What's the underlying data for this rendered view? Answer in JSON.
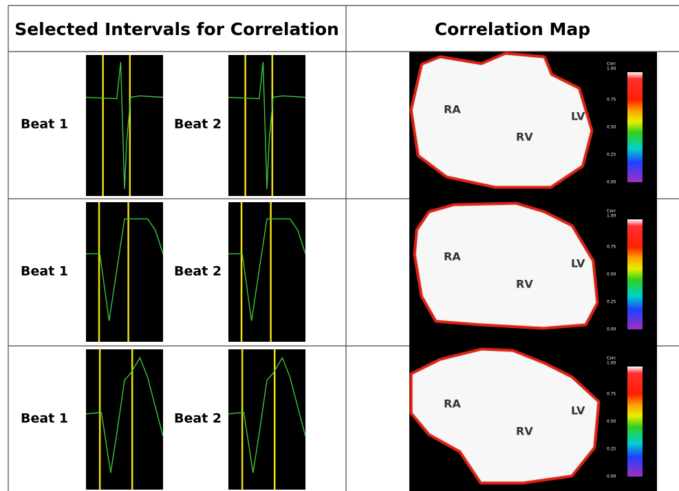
{
  "header": {
    "left": "Selected Intervals for Correlation",
    "right": "Correlation Map"
  },
  "rows": [
    {
      "beat_a": "Beat 1",
      "beat_b": "Beat 2",
      "map_labels": [
        "RA",
        "RV",
        "LV"
      ],
      "colorbar": {
        "title": "Corr.",
        "ticks": [
          "1.00",
          "0.75",
          "0.50",
          "0.25",
          "0.00"
        ]
      }
    },
    {
      "beat_a": "Beat 1",
      "beat_b": "Beat 2",
      "map_labels": [
        "RA",
        "RV",
        "LV"
      ],
      "colorbar": {
        "title": "Corr.",
        "ticks": [
          "1.00",
          "0.75",
          "0.50",
          "0.25",
          "0.00"
        ]
      }
    },
    {
      "beat_a": "Beat 1",
      "beat_b": "Beat 2",
      "map_labels": [
        "RA",
        "RV",
        "LV"
      ],
      "colorbar": {
        "title": "Corr.",
        "ticks": [
          "1.00",
          "0.75",
          "0.50",
          "0.25",
          "0.00"
        ]
      }
    }
  ]
}
